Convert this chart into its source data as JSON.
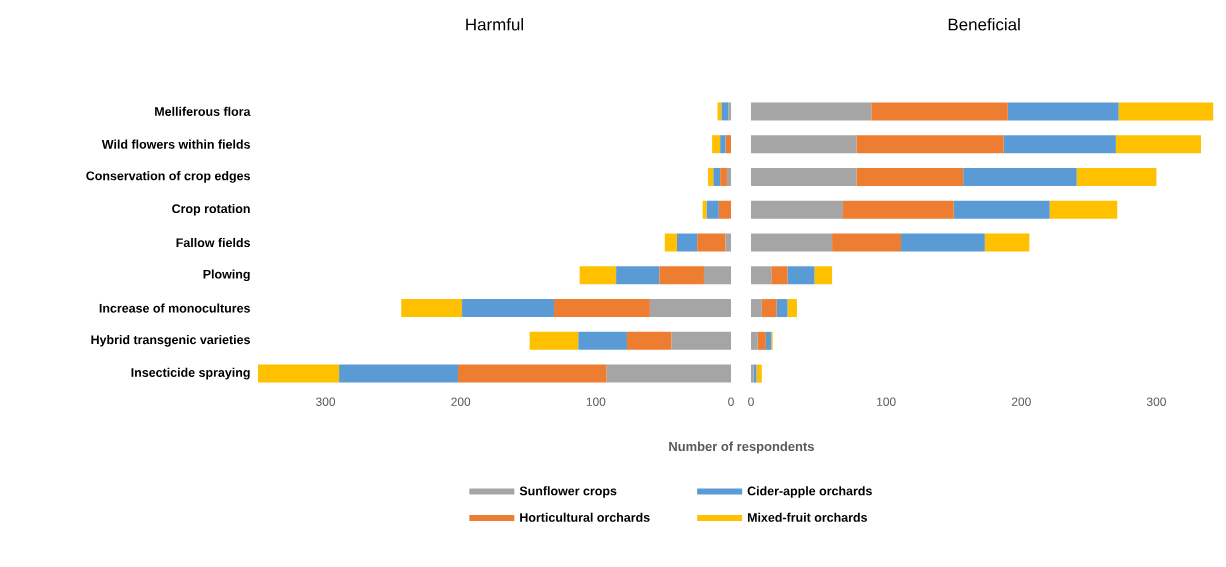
{
  "chart_data": [
    {
      "type": "bar",
      "orientation": "horizontal",
      "stacked": true,
      "title": "Harmful",
      "xlabel": "Number of respondents",
      "legend": "bottom",
      "categories": [
        "Melliferous flora",
        "Wild flowers within fields",
        "Conservation of crop edges",
        "Crop rotation",
        "Fallow fields",
        "Plowing",
        "Increase of monocultures",
        "Hybrid transgenic varieties",
        "Insecticide spraying"
      ],
      "series": [
        {
          "name": "Sunflower crops",
          "color": "#a5a5a5",
          "values": [
            2,
            0,
            3,
            0,
            4,
            20,
            60,
            44,
            92
          ]
        },
        {
          "name": "Horticultural orchards",
          "color": "#ed7d31",
          "values": [
            0,
            4,
            5,
            9,
            21,
            33,
            71,
            33,
            110
          ]
        },
        {
          "name": "Cider-apple orchards",
          "color": "#5b9bd5",
          "values": [
            5,
            4,
            5,
            9,
            15,
            32,
            68,
            36,
            88
          ]
        },
        {
          "name": "Mixed-fruit orchards",
          "color": "#ffc000",
          "values": [
            3,
            6,
            4,
            3,
            9,
            27,
            45,
            36,
            60
          ]
        }
      ],
      "xlim": [
        350,
        0
      ],
      "xticks": [
        300,
        200,
        100,
        0
      ]
    },
    {
      "type": "bar",
      "orientation": "horizontal",
      "stacked": true,
      "title": "Beneficial",
      "tick_labels": "x",
      "categories": [
        "Melliferous flora",
        "Wild flowers within fields",
        "Conservation of crop edges",
        "Crop rotation",
        "Fallow fields",
        "Plowing",
        "Increase of monocultures",
        "Hybrid transgenic varieties",
        "Insecticide spraying"
      ],
      "series": [
        {
          "color": "#a5a5a5",
          "values": [
            89,
            78,
            78,
            68,
            60,
            15,
            8,
            5,
            2
          ]
        },
        {
          "color": "#ed7d31",
          "values": [
            101,
            109,
            79,
            82,
            51,
            12,
            11,
            6,
            0
          ]
        },
        {
          "color": "#5b9bd5",
          "values": [
            82,
            83,
            84,
            71,
            62,
            20,
            8,
            4,
            2
          ]
        },
        {
          "color": "#ffc000",
          "values": [
            70,
            63,
            59,
            50,
            33,
            13,
            7,
            1,
            4
          ]
        }
      ],
      "xlim": [
        0,
        345
      ],
      "xticks": [
        0,
        100,
        200,
        300
      ]
    }
  ]
}
